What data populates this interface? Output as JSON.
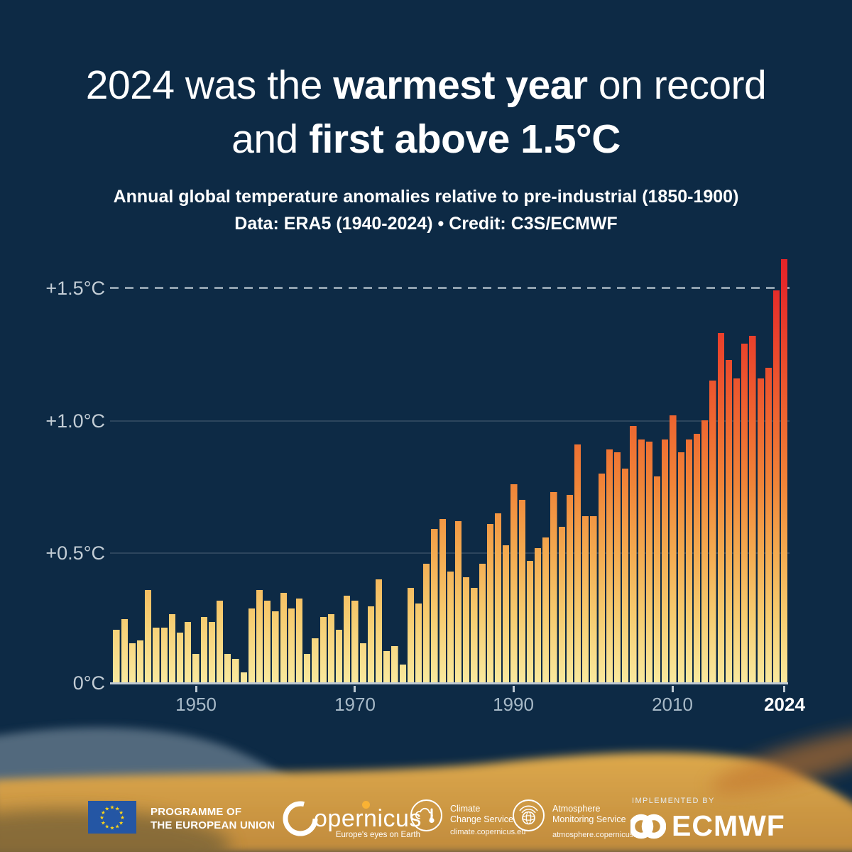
{
  "title": {
    "line1_pre": "2024 was the ",
    "line1_bold": "warmest year",
    "line1_post": " on record",
    "line2_pre": "and ",
    "line2_bold": "first above 1.5°C"
  },
  "subtitle": {
    "line1": "Annual global temperature anomalies relative to pre-industrial (1850-1900)",
    "line2": "Data: ERA5 (1940-2024) • Credit: C3S/ECMWF"
  },
  "chart_data": {
    "type": "bar",
    "title": "Annual global temperature anomalies relative to pre-industrial (1850-1900)",
    "xlabel": "",
    "ylabel": "",
    "ylim": [
      0,
      1.65
    ],
    "grid": "horizontal-faint",
    "threshold_line": {
      "value": 1.5,
      "style": "dashed",
      "label": "+1.5°C"
    },
    "y_tick_labels": [
      "0°C",
      "+0.5°C",
      "+1.0°C",
      "+1.5°C"
    ],
    "y_tick_values": [
      0,
      0.5,
      1.0,
      1.5
    ],
    "x_tick_labels": [
      "1950",
      "1970",
      "1990",
      "2010",
      "2024"
    ],
    "x_tick_years": [
      1950,
      1970,
      1990,
      2010,
      2024
    ],
    "years": [
      1940,
      1941,
      1942,
      1943,
      1944,
      1945,
      1946,
      1947,
      1948,
      1949,
      1950,
      1951,
      1952,
      1953,
      1954,
      1955,
      1956,
      1957,
      1958,
      1959,
      1960,
      1961,
      1962,
      1963,
      1964,
      1965,
      1966,
      1967,
      1968,
      1969,
      1970,
      1971,
      1972,
      1973,
      1974,
      1975,
      1976,
      1977,
      1978,
      1979,
      1980,
      1981,
      1982,
      1983,
      1984,
      1985,
      1986,
      1987,
      1988,
      1989,
      1990,
      1991,
      1992,
      1993,
      1994,
      1995,
      1996,
      1997,
      1998,
      1999,
      2000,
      2001,
      2002,
      2003,
      2004,
      2005,
      2006,
      2007,
      2008,
      2009,
      2010,
      2011,
      2012,
      2013,
      2014,
      2015,
      2016,
      2017,
      2018,
      2019,
      2020,
      2021,
      2022,
      2023,
      2024
    ],
    "values": [
      0.2,
      0.24,
      0.15,
      0.16,
      0.35,
      0.21,
      0.21,
      0.26,
      0.19,
      0.23,
      0.11,
      0.25,
      0.23,
      0.31,
      0.11,
      0.09,
      0.04,
      0.28,
      0.35,
      0.31,
      0.27,
      0.34,
      0.28,
      0.32,
      0.11,
      0.17,
      0.25,
      0.26,
      0.2,
      0.33,
      0.31,
      0.15,
      0.29,
      0.39,
      0.12,
      0.14,
      0.07,
      0.36,
      0.3,
      0.45,
      0.58,
      0.62,
      0.42,
      0.61,
      0.4,
      0.36,
      0.45,
      0.6,
      0.64,
      0.52,
      0.75,
      0.69,
      0.46,
      0.51,
      0.55,
      0.72,
      0.59,
      0.71,
      0.9,
      0.63,
      0.63,
      0.79,
      0.88,
      0.87,
      0.81,
      0.97,
      0.92,
      0.91,
      0.78,
      0.92,
      1.01,
      0.87,
      0.92,
      0.94,
      0.99,
      1.14,
      1.32,
      1.22,
      1.15,
      1.28,
      1.31,
      1.15,
      1.19,
      1.48,
      1.6
    ],
    "bar_gradient_bottom_to_top": [
      "#F9E99E",
      "#F6CC70",
      "#F3A94F",
      "#F08438",
      "#EE6530",
      "#EA472C",
      "#E62A2A",
      "#E42127"
    ]
  },
  "colors": {
    "background": "#0D2A45",
    "title_text": "#FFFFFF",
    "axis_text": "#A7B9C7",
    "y_axis_text": "#C3CDD5",
    "axis_line": "#BFCAD3",
    "dashed_threshold_line": "#8FA0AE",
    "highlight_year_label": "#FFFFFF"
  },
  "footer": {
    "eu": {
      "line1": "PROGRAMME OF",
      "line2": "THE EUROPEAN UNION"
    },
    "copernicus": {
      "name": "Copernicus",
      "name_rest": "opernicus",
      "tagline": "Europe's eyes on Earth"
    },
    "c3s": {
      "line1": "Climate",
      "line2": "Change Service",
      "url": "climate.copernicus.eu"
    },
    "cams": {
      "line1": "Atmosphere",
      "line2": "Monitoring Service",
      "url": "atmosphere.copernicus.eu"
    },
    "ecmwf": {
      "implemented_by": "IMPLEMENTED BY",
      "name": "ECMWF"
    }
  }
}
